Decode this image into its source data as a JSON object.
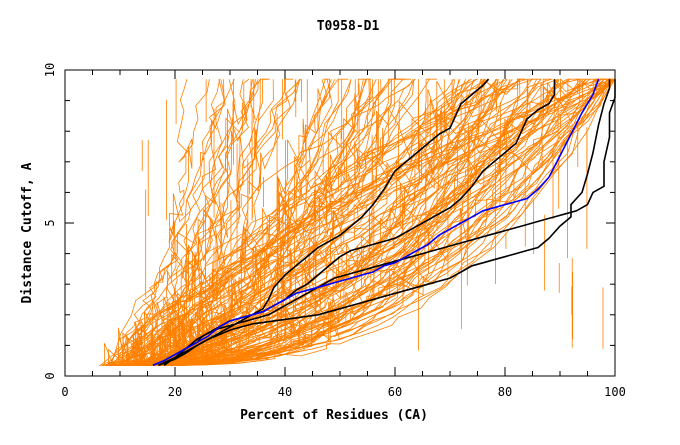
{
  "chart_data": {
    "type": "line",
    "title": "T0958-D1",
    "xlabel": "Percent of Residues (CA)",
    "ylabel": "Distance Cutoff, A",
    "xlim": [
      0,
      100
    ],
    "ylim": [
      0,
      10
    ],
    "x_ticks": [
      "0",
      "20",
      "40",
      "60",
      "80",
      "100"
    ],
    "y_ticks": [
      "0",
      "5",
      "10"
    ],
    "grid": false,
    "colors": {
      "background_models": "#ff8000",
      "highlight_models": "#000000",
      "blue_model": "#0000ff",
      "frame": "#000000"
    },
    "series": [
      {
        "group": "black",
        "points": [
          [
            16,
            0.35
          ],
          [
            18,
            0.5
          ],
          [
            20,
            0.7
          ],
          [
            22,
            0.9
          ],
          [
            24,
            1.2
          ],
          [
            26,
            1.4
          ],
          [
            28,
            1.6
          ],
          [
            30,
            1.8
          ],
          [
            32,
            1.9
          ],
          [
            34,
            2.0
          ],
          [
            36,
            2.2
          ],
          [
            37,
            2.5
          ],
          [
            38,
            2.9
          ],
          [
            40,
            3.3
          ],
          [
            42,
            3.6
          ],
          [
            44,
            3.9
          ],
          [
            46,
            4.2
          ],
          [
            48,
            4.4
          ],
          [
            50,
            4.6
          ],
          [
            52,
            4.9
          ],
          [
            54,
            5.2
          ],
          [
            56,
            5.6
          ],
          [
            58,
            6.1
          ],
          [
            60,
            6.7
          ],
          [
            62,
            7.0
          ],
          [
            64,
            7.3
          ],
          [
            66,
            7.6
          ],
          [
            68,
            7.9
          ],
          [
            70,
            8.1
          ],
          [
            71,
            8.5
          ],
          [
            72,
            8.9
          ],
          [
            74,
            9.2
          ],
          [
            76,
            9.5
          ],
          [
            77,
            9.7
          ]
        ]
      },
      {
        "group": "black",
        "points": [
          [
            17,
            0.35
          ],
          [
            20,
            0.6
          ],
          [
            22,
            0.8
          ],
          [
            24,
            1.0
          ],
          [
            26,
            1.2
          ],
          [
            28,
            1.4
          ],
          [
            30,
            1.6
          ],
          [
            32,
            1.8
          ],
          [
            34,
            2.0
          ],
          [
            36,
            2.1
          ],
          [
            38,
            2.3
          ],
          [
            40,
            2.5
          ],
          [
            42,
            2.8
          ],
          [
            44,
            3.0
          ],
          [
            46,
            3.3
          ],
          [
            48,
            3.6
          ],
          [
            50,
            3.9
          ],
          [
            52,
            4.1
          ],
          [
            54,
            4.2
          ],
          [
            56,
            4.3
          ],
          [
            58,
            4.4
          ],
          [
            60,
            4.5
          ],
          [
            62,
            4.7
          ],
          [
            64,
            4.9
          ],
          [
            66,
            5.1
          ],
          [
            68,
            5.3
          ],
          [
            70,
            5.5
          ],
          [
            72,
            5.8
          ],
          [
            74,
            6.2
          ],
          [
            76,
            6.7
          ],
          [
            78,
            7.0
          ],
          [
            80,
            7.3
          ],
          [
            82,
            7.6
          ],
          [
            83,
            8.0
          ],
          [
            84,
            8.4
          ],
          [
            86,
            8.7
          ],
          [
            88,
            8.9
          ],
          [
            89,
            9.2
          ],
          [
            89,
            9.7
          ]
        ]
      },
      {
        "group": "black",
        "points": [
          [
            17,
            0.35
          ],
          [
            20,
            0.55
          ],
          [
            22,
            0.75
          ],
          [
            24,
            1.0
          ],
          [
            26,
            1.2
          ],
          [
            28,
            1.35
          ],
          [
            30,
            1.5
          ],
          [
            32,
            1.6
          ],
          [
            34,
            1.7
          ],
          [
            36,
            1.75
          ],
          [
            38,
            1.8
          ],
          [
            40,
            1.85
          ],
          [
            42,
            1.9
          ],
          [
            44,
            1.95
          ],
          [
            46,
            2.0
          ],
          [
            48,
            2.1
          ],
          [
            50,
            2.2
          ],
          [
            52,
            2.3
          ],
          [
            54,
            2.4
          ],
          [
            56,
            2.5
          ],
          [
            58,
            2.6
          ],
          [
            60,
            2.7
          ],
          [
            62,
            2.8
          ],
          [
            64,
            2.9
          ],
          [
            66,
            3.0
          ],
          [
            68,
            3.1
          ],
          [
            70,
            3.2
          ],
          [
            72,
            3.4
          ],
          [
            74,
            3.6
          ],
          [
            76,
            3.7
          ],
          [
            78,
            3.8
          ],
          [
            80,
            3.9
          ],
          [
            82,
            4.0
          ],
          [
            84,
            4.1
          ],
          [
            86,
            4.2
          ],
          [
            88,
            4.5
          ],
          [
            90,
            4.9
          ],
          [
            92,
            5.2
          ],
          [
            92,
            5.6
          ],
          [
            94,
            6.0
          ],
          [
            95,
            6.6
          ],
          [
            96,
            7.3
          ],
          [
            97,
            8.2
          ],
          [
            98,
            8.9
          ],
          [
            99,
            9.4
          ],
          [
            99,
            9.7
          ]
        ]
      },
      {
        "group": "black",
        "points": [
          [
            18,
            0.35
          ],
          [
            20,
            0.6
          ],
          [
            22,
            0.9
          ],
          [
            24,
            1.1
          ],
          [
            25,
            1.3
          ],
          [
            27,
            1.5
          ],
          [
            29,
            1.6
          ],
          [
            31,
            1.7
          ],
          [
            33,
            1.8
          ],
          [
            35,
            1.9
          ],
          [
            37,
            2.0
          ],
          [
            39,
            2.2
          ],
          [
            41,
            2.4
          ],
          [
            43,
            2.6
          ],
          [
            45,
            2.8
          ],
          [
            47,
            3.0
          ],
          [
            49,
            3.2
          ],
          [
            51,
            3.3
          ],
          [
            53,
            3.4
          ],
          [
            55,
            3.5
          ],
          [
            57,
            3.6
          ],
          [
            59,
            3.7
          ],
          [
            61,
            3.8
          ],
          [
            63,
            3.9
          ],
          [
            65,
            4.0
          ],
          [
            67,
            4.1
          ],
          [
            69,
            4.2
          ],
          [
            71,
            4.3
          ],
          [
            73,
            4.4
          ],
          [
            75,
            4.5
          ],
          [
            77,
            4.6
          ],
          [
            79,
            4.7
          ],
          [
            81,
            4.8
          ],
          [
            83,
            4.9
          ],
          [
            85,
            5.0
          ],
          [
            87,
            5.1
          ],
          [
            89,
            5.2
          ],
          [
            91,
            5.3
          ],
          [
            93,
            5.4
          ],
          [
            95,
            5.6
          ],
          [
            96,
            6.0
          ],
          [
            98,
            6.2
          ],
          [
            98,
            7.0
          ],
          [
            99,
            7.8
          ],
          [
            99,
            8.6
          ],
          [
            100,
            9.1
          ],
          [
            100,
            9.7
          ]
        ]
      },
      {
        "group": "blue",
        "points": [
          [
            16,
            0.35
          ],
          [
            18,
            0.5
          ],
          [
            20,
            0.7
          ],
          [
            22,
            0.9
          ],
          [
            24,
            1.1
          ],
          [
            26,
            1.3
          ],
          [
            28,
            1.6
          ],
          [
            30,
            1.8
          ],
          [
            32,
            1.9
          ],
          [
            34,
            2.0
          ],
          [
            36,
            2.1
          ],
          [
            38,
            2.3
          ],
          [
            40,
            2.5
          ],
          [
            42,
            2.7
          ],
          [
            44,
            2.8
          ],
          [
            46,
            2.9
          ],
          [
            48,
            3.0
          ],
          [
            50,
            3.1
          ],
          [
            52,
            3.2
          ],
          [
            54,
            3.3
          ],
          [
            56,
            3.4
          ],
          [
            58,
            3.6
          ],
          [
            60,
            3.7
          ],
          [
            62,
            3.9
          ],
          [
            64,
            4.1
          ],
          [
            66,
            4.3
          ],
          [
            68,
            4.6
          ],
          [
            70,
            4.8
          ],
          [
            72,
            5.0
          ],
          [
            74,
            5.2
          ],
          [
            76,
            5.4
          ],
          [
            78,
            5.5
          ],
          [
            80,
            5.6
          ],
          [
            82,
            5.7
          ],
          [
            84,
            5.8
          ],
          [
            86,
            6.1
          ],
          [
            88,
            6.5
          ],
          [
            90,
            7.2
          ],
          [
            92,
            7.9
          ],
          [
            94,
            8.6
          ],
          [
            96,
            9.2
          ],
          [
            97,
            9.7
          ]
        ]
      }
    ]
  }
}
